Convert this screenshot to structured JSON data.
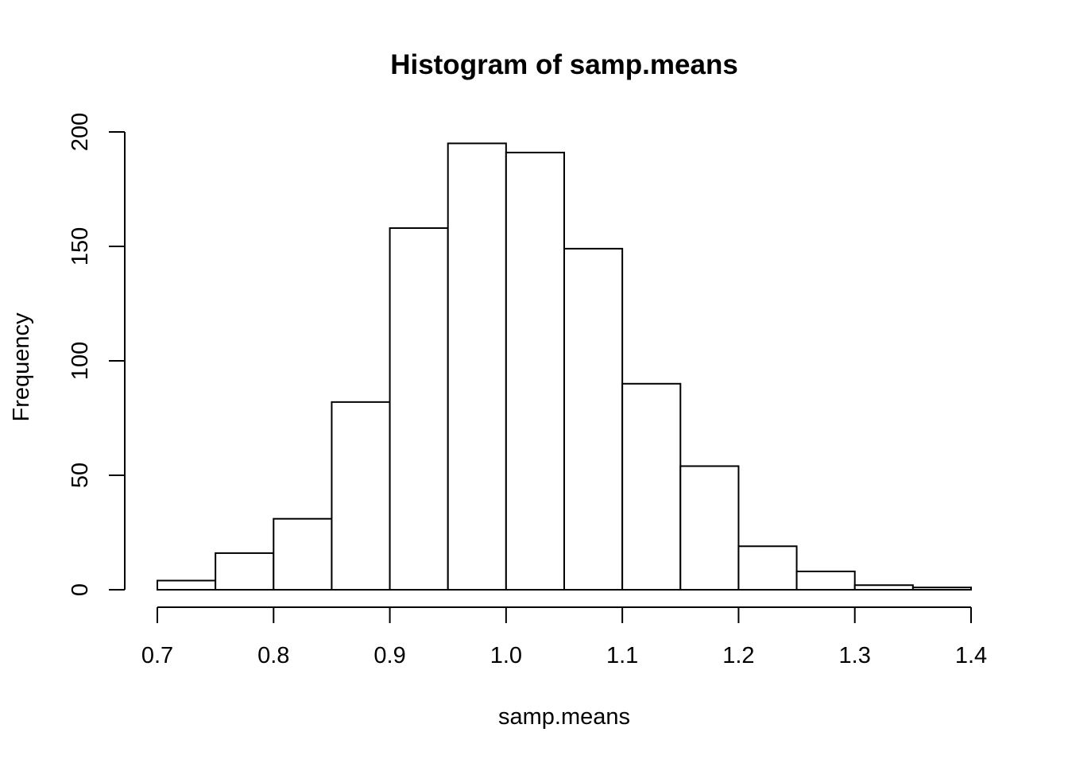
{
  "chart_data": {
    "type": "bar",
    "subtype": "histogram",
    "title": "Histogram of samp.means",
    "xlabel": "samp.means",
    "ylabel": "Frequency",
    "bins": [
      {
        "x0": 0.7,
        "x1": 0.75,
        "count": 4
      },
      {
        "x0": 0.75,
        "x1": 0.8,
        "count": 16
      },
      {
        "x0": 0.8,
        "x1": 0.85,
        "count": 31
      },
      {
        "x0": 0.85,
        "x1": 0.9,
        "count": 82
      },
      {
        "x0": 0.9,
        "x1": 0.95,
        "count": 158
      },
      {
        "x0": 0.95,
        "x1": 1.0,
        "count": 195
      },
      {
        "x0": 1.0,
        "x1": 1.05,
        "count": 191
      },
      {
        "x0": 1.05,
        "x1": 1.1,
        "count": 149
      },
      {
        "x0": 1.1,
        "x1": 1.15,
        "count": 90
      },
      {
        "x0": 1.15,
        "x1": 1.2,
        "count": 54
      },
      {
        "x0": 1.2,
        "x1": 1.25,
        "count": 19
      },
      {
        "x0": 1.25,
        "x1": 1.3,
        "count": 8
      },
      {
        "x0": 1.3,
        "x1": 1.35,
        "count": 2
      },
      {
        "x0": 1.35,
        "x1": 1.4,
        "count": 1
      }
    ],
    "xlim": [
      0.7,
      1.4
    ],
    "ylim": [
      0,
      200
    ],
    "xticks": [
      {
        "value": 0.7,
        "label": "0.7"
      },
      {
        "value": 0.8,
        "label": "0.8"
      },
      {
        "value": 0.9,
        "label": "0.9"
      },
      {
        "value": 1.0,
        "label": "1.0"
      },
      {
        "value": 1.1,
        "label": "1.1"
      },
      {
        "value": 1.2,
        "label": "1.2"
      },
      {
        "value": 1.3,
        "label": "1.3"
      },
      {
        "value": 1.4,
        "label": "1.4"
      }
    ],
    "yticks": [
      {
        "value": 0,
        "label": "0"
      },
      {
        "value": 50,
        "label": "50"
      },
      {
        "value": 100,
        "label": "100"
      },
      {
        "value": 150,
        "label": "150"
      },
      {
        "value": 200,
        "label": "200"
      }
    ],
    "grid": false,
    "legend": "none"
  }
}
